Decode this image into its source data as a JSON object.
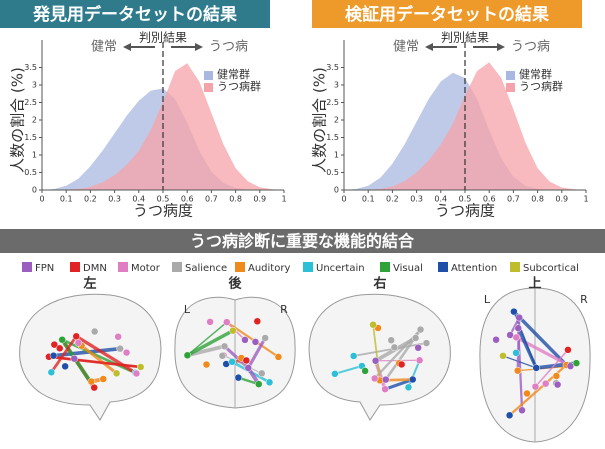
{
  "chart_data": [
    {
      "type": "area",
      "title": "発見用データセットの結果",
      "header": "判別結果",
      "left_label": "健常",
      "right_label": "うつ病",
      "xlabel": "うつ病度",
      "ylabel": "人数の割合 (%)",
      "threshold": 0.5,
      "legend": "upper right",
      "x": [
        0,
        0.05,
        0.1,
        0.15,
        0.2,
        0.25,
        0.3,
        0.35,
        0.4,
        0.45,
        0.5,
        0.55,
        0.6,
        0.65,
        0.7,
        0.75,
        0.8,
        0.85,
        0.9,
        0.95,
        1
      ],
      "series": [
        {
          "name": "健常群",
          "color": "#a9b8e0",
          "values": [
            0,
            0.03,
            0.12,
            0.32,
            0.68,
            1.12,
            1.62,
            2.12,
            2.55,
            2.84,
            2.9,
            2.6,
            1.92,
            1.12,
            0.52,
            0.2,
            0.06,
            0.01,
            0,
            0,
            0
          ]
        },
        {
          "name": "うつ病群",
          "color": "#f5a3aa",
          "values": [
            0,
            0,
            0.01,
            0.03,
            0.09,
            0.22,
            0.42,
            0.72,
            1.12,
            1.72,
            2.52,
            3.4,
            3.62,
            3.1,
            2.2,
            1.3,
            0.62,
            0.25,
            0.08,
            0.02,
            0
          ]
        }
      ],
      "xlim": [
        0,
        1
      ],
      "xticks": [
        0,
        0.1,
        0.2,
        0.3,
        0.4,
        0.5,
        0.6,
        0.7,
        0.8,
        0.9,
        1
      ],
      "ylim": [
        0,
        4
      ],
      "yticks": [
        0,
        0.5,
        1,
        1.5,
        2,
        2.5,
        3,
        3.5
      ]
    },
    {
      "type": "area",
      "title": "検証用データセットの結果",
      "header": "判別結果",
      "left_label": "健常",
      "right_label": "うつ病",
      "xlabel": "うつ病度",
      "ylabel": "人数の割合 (%)",
      "threshold": 0.5,
      "legend": "upper right",
      "x": [
        0,
        0.05,
        0.1,
        0.15,
        0.2,
        0.25,
        0.3,
        0.35,
        0.4,
        0.45,
        0.5,
        0.55,
        0.6,
        0.65,
        0.7,
        0.75,
        0.8,
        0.85,
        0.9,
        0.95,
        1
      ],
      "series": [
        {
          "name": "健常群",
          "color": "#a9b8e0",
          "values": [
            0,
            0.03,
            0.12,
            0.35,
            0.75,
            1.3,
            1.95,
            2.6,
            3.1,
            3.35,
            3.2,
            2.6,
            1.7,
            0.9,
            0.38,
            0.12,
            0.03,
            0,
            0,
            0,
            0
          ]
        },
        {
          "name": "うつ病群",
          "color": "#f5a3aa",
          "values": [
            0,
            0,
            0.01,
            0.03,
            0.1,
            0.25,
            0.5,
            0.85,
            1.3,
            1.9,
            2.7,
            3.4,
            3.65,
            3.2,
            2.3,
            1.35,
            0.62,
            0.24,
            0.07,
            0.02,
            0
          ]
        }
      ],
      "xlim": [
        0,
        1
      ],
      "xticks": [
        0,
        0.1,
        0.2,
        0.3,
        0.4,
        0.5,
        0.6,
        0.7,
        0.8,
        0.9,
        1
      ],
      "ylim": [
        0,
        4
      ],
      "yticks": [
        0,
        0.5,
        1,
        1.5,
        2,
        2.5,
        3,
        3.5
      ]
    }
  ],
  "brain_panel": {
    "title": "うつ病診断に重要な機能的結合",
    "networks": [
      {
        "name": "FPN",
        "color": "#9b5fc0"
      },
      {
        "name": "DMN",
        "color": "#e02424"
      },
      {
        "name": "Motor",
        "color": "#e07ec4"
      },
      {
        "name": "Salience",
        "color": "#aaaaaa"
      },
      {
        "name": "Auditory",
        "color": "#f08a1c"
      },
      {
        "name": "Uncertain",
        "color": "#2cc0d6"
      },
      {
        "name": "Visual",
        "color": "#2fa33a"
      },
      {
        "name": "Attention",
        "color": "#1f4fa8"
      },
      {
        "name": "Subcortical",
        "color": "#bdbd2e"
      }
    ],
    "views": [
      "左",
      "後",
      "右",
      "上"
    ],
    "marker_left": "L",
    "marker_right": "R"
  }
}
